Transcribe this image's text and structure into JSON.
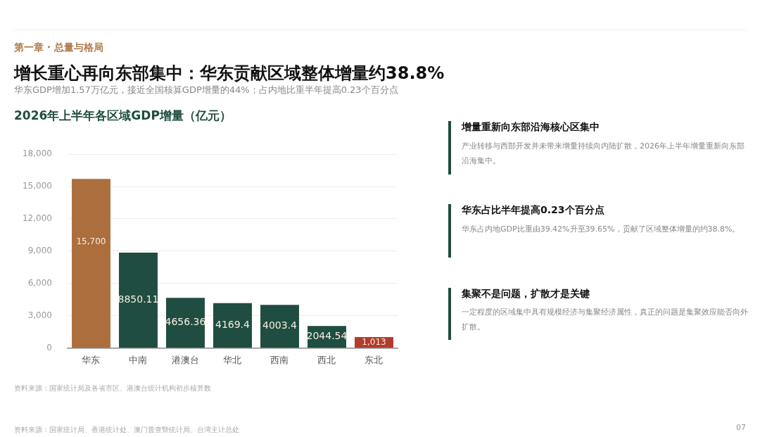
{
  "chart_data": {
    "type": "bar",
    "title": "增长重心再向东部集中：华东贡献区域整体增量约38.8%",
    "subtitle": "华东GDP增加1.57万亿元，接近全国核算GDP增量的44%；占内地比重半年提高0.23个百分点",
    "annotations": [
      "第一章 · 总量与格局",
      "2026年上半年各区域GDP增量（亿元）",
      "增量重新向东部沿海核心区集中",
      "产业转移与西部开发并未带来增量持续向内陆扩散，2026年上半年增量重新向东部沿海集中。",
      "华东占比半年提高0.23个百分点",
      "华东占内地GDP比重由39.42%升至39.65%，贡献了区域整体增量的约38.8%。",
      "集聚不是问题，扩散才是关键",
      "一定程度的区域集中具有规模经济与集聚经济属性，真正的问题是集聚效应能否向外扩散。",
      "资料来源：国家统计局及各省市区、港澳台统计机构初步核算数",
      "资料来源：国家统计局、香港统计处、澳门普查暨统计局、台湾主计总处",
      "07"
    ],
    "categories": [
      "华东",
      "中南",
      "港澳台",
      "华北",
      "西南",
      "西北",
      "东北"
    ],
    "values": [
      15700,
      8850.11,
      4656.36,
      4169.4,
      4003.4,
      2044.54,
      1013
    ],
    "colors": [
      "#ad6e3d",
      "#1f4d41",
      "#1f4d41",
      "#1f4d41",
      "#1f4d41",
      "#1f4d41",
      "#b23b2d"
    ],
    "value_labels": [
      "15,700",
      "8850.11",
      "4656.36",
      "4169.4",
      "4003.4",
      "2044.54",
      "1,013"
    ],
    "ylim": [
      0,
      18000
    ],
    "yticks": [
      0,
      {
        "value": 3000,
        "label": "3,000"
      },
      {
        "value": 6000,
        "label": "6,000"
      },
      {
        "value": 9000,
        "label": "9,000"
      },
      {
        "value": 12000,
        "label": "12,000"
      },
      {
        "value": 15000,
        "label": "15,000"
      },
      {
        "value": 18000,
        "label": "18,000"
      }
    ],
    "grid": "y",
    "legend": false
  }
}
